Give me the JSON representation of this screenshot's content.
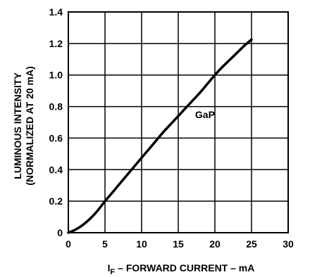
{
  "chart_data": {
    "type": "line",
    "xlabel": {
      "main": "I",
      "sub": "F",
      "rest": " – FORWARD CURRENT – mA"
    },
    "ylabel": [
      "LUMINOUS INTENSITY",
      "(NORMALIZED AT 20 mA)"
    ],
    "xlim": [
      0,
      30
    ],
    "ylim": [
      0,
      1.4
    ],
    "x_ticks": [
      "0",
      "5",
      "10",
      "15",
      "20",
      "25",
      "30"
    ],
    "y_ticks": [
      "0",
      "0.2",
      "0.4",
      "0.6",
      "0.8",
      "1.0",
      "1.2",
      "1.4"
    ],
    "grid": true,
    "annotation": {
      "text": "GaP",
      "x": 17.3,
      "y": 0.75
    },
    "series": [
      {
        "name": "GaP",
        "x": [
          0,
          1,
          2,
          3,
          4,
          5,
          6,
          7,
          8,
          9,
          10,
          11,
          12,
          13,
          14,
          15,
          16,
          17,
          18,
          19,
          20,
          21,
          22,
          23,
          24,
          25
        ],
        "y": [
          0,
          0.02,
          0.05,
          0.09,
          0.14,
          0.2,
          0.254,
          0.31,
          0.365,
          0.42,
          0.475,
          0.53,
          0.585,
          0.64,
          0.69,
          0.74,
          0.79,
          0.84,
          0.89,
          0.945,
          1.0,
          1.05,
          1.095,
          1.14,
          1.185,
          1.225
        ]
      }
    ]
  }
}
